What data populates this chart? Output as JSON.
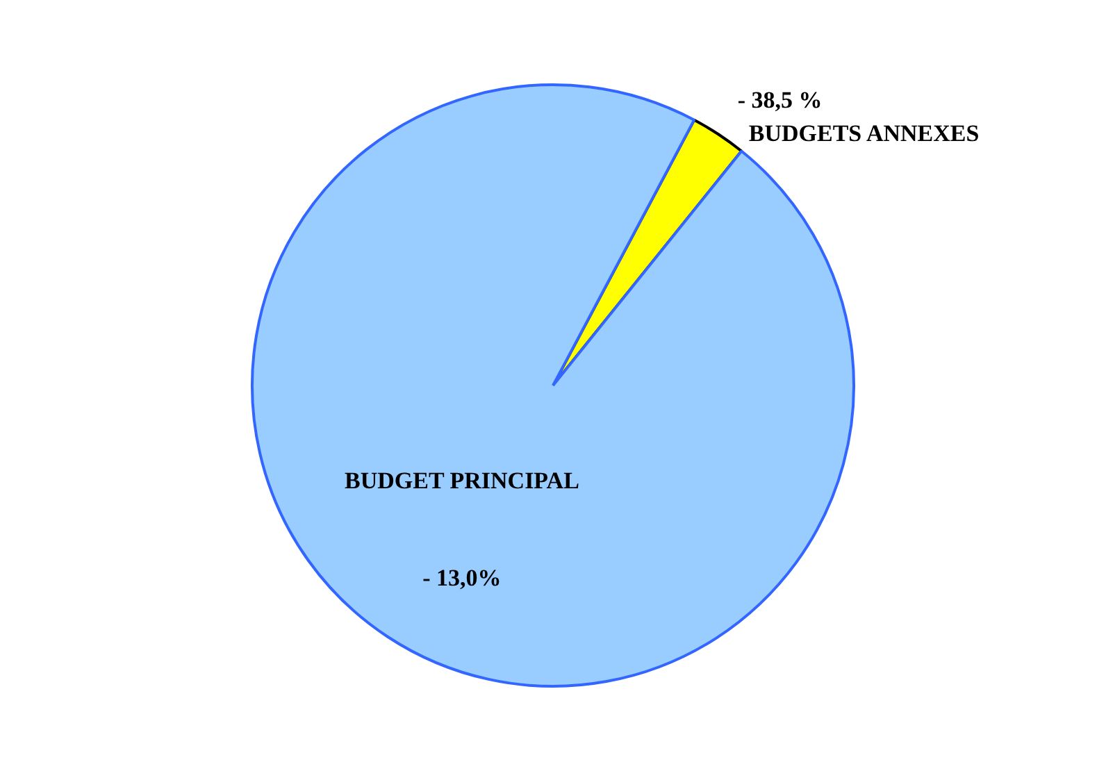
{
  "chart_data": {
    "type": "pie",
    "categories": [
      "BUDGETS ANNEXES",
      "BUDGET PRINCIPAL"
    ],
    "values": [
      3,
      97
    ],
    "colors": [
      "#ffff00",
      "#99ccff"
    ],
    "annotations": [
      "- 38,5 %",
      "- 13,0%"
    ],
    "legend": false
  }
}
